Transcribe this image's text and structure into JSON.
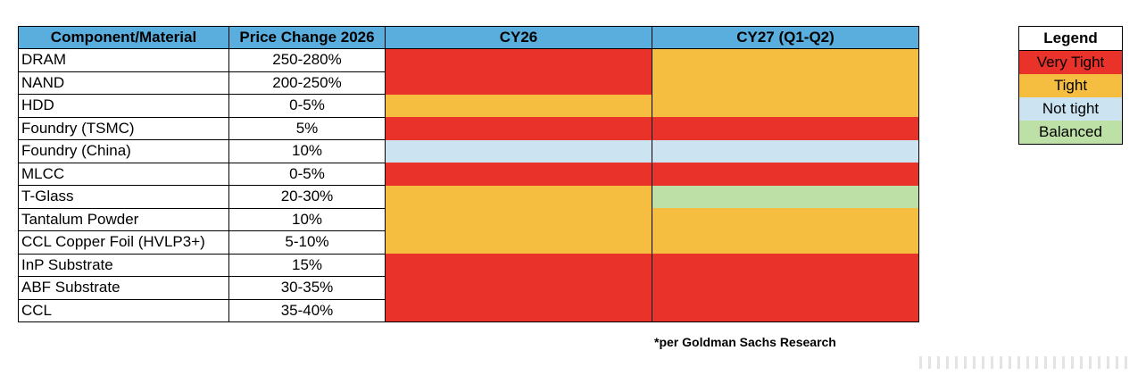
{
  "table": {
    "headers": [
      "Component/Material",
      "Price Change 2026",
      "CY26",
      "CY27 (Q1-Q2)"
    ],
    "rows": [
      {
        "name": "DRAM",
        "price": "250-280%",
        "cy26": "very_tight",
        "cy27": "tight"
      },
      {
        "name": "NAND",
        "price": "200-250%",
        "cy26": "very_tight",
        "cy27": "tight"
      },
      {
        "name": "HDD",
        "price": "0-5%",
        "cy26": "tight",
        "cy27": "tight"
      },
      {
        "name": "Foundry (TSMC)",
        "price": "5%",
        "cy26": "very_tight",
        "cy27": "very_tight"
      },
      {
        "name": "Foundry (China)",
        "price": "10%",
        "cy26": "not_tight",
        "cy27": "not_tight"
      },
      {
        "name": "MLCC",
        "price": "0-5%",
        "cy26": "very_tight",
        "cy27": "very_tight"
      },
      {
        "name": "T-Glass",
        "price": "20-30%",
        "cy26": "tight",
        "cy27": "balanced"
      },
      {
        "name": "Tantalum Powder",
        "price": "10%",
        "cy26": "tight",
        "cy27": "tight"
      },
      {
        "name": "CCL Copper Foil (HVLP3+)",
        "price": "5-10%",
        "cy26": "tight",
        "cy27": "tight"
      },
      {
        "name": "InP Substrate",
        "price": "15%",
        "cy26": "very_tight",
        "cy27": "very_tight"
      },
      {
        "name": "ABF Substrate",
        "price": "30-35%",
        "cy26": "very_tight",
        "cy27": "very_tight"
      },
      {
        "name": "CCL",
        "price": "35-40%",
        "cy26": "very_tight",
        "cy27": "very_tight"
      }
    ]
  },
  "legend": {
    "title": "Legend",
    "items": [
      {
        "key": "very_tight",
        "label": "Very Tight",
        "color": "#e8322a"
      },
      {
        "key": "tight",
        "label": "Tight",
        "color": "#f5be40"
      },
      {
        "key": "not_tight",
        "label": "Not tight",
        "color": "#cce4f2"
      },
      {
        "key": "balanced",
        "label": "Balanced",
        "color": "#bde0a6"
      }
    ]
  },
  "footnote": "*per Goldman Sachs Research",
  "colors": {
    "header_bg": "#5aaede"
  }
}
